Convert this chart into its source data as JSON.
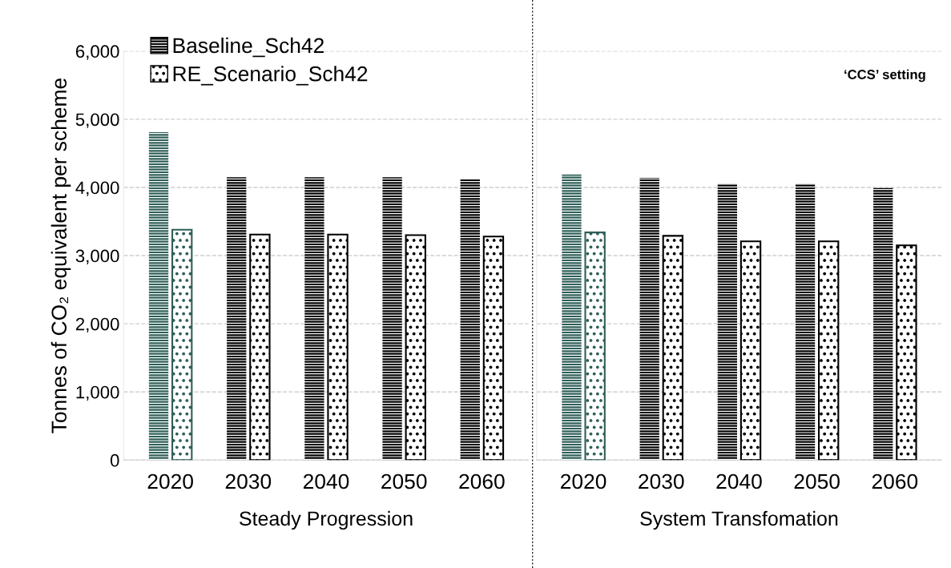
{
  "chart_data": [
    {
      "type": "bar",
      "xlabel": "Steady Progression",
      "ylabel": "Tonnes of CO₂ equivalent per scheme",
      "categories": [
        "2020",
        "2030",
        "2040",
        "2050",
        "2060"
      ],
      "series": [
        {
          "name": "Baseline_Sch42",
          "color": "#000000",
          "colors": [
            "#2e5e57",
            "#000000",
            "#000000",
            "#000000",
            "#000000"
          ],
          "values": [
            4810,
            4150,
            4150,
            4150,
            4130
          ]
        },
        {
          "name": "RE_Scenario_Sch42",
          "color": "#000000",
          "colors": [
            "#2e5e57",
            "#000000",
            "#000000",
            "#000000",
            "#000000"
          ],
          "values": [
            3380,
            3310,
            3310,
            3300,
            3280
          ]
        }
      ],
      "ylim": [
        0,
        6000
      ],
      "yticks": [
        {
          "value": 0,
          "label": "0"
        },
        {
          "value": 1000,
          "label": "1,000"
        },
        {
          "value": 2000,
          "label": "2,000"
        },
        {
          "value": 3000,
          "label": "3,000"
        },
        {
          "value": 4000,
          "label": "4,000"
        },
        {
          "value": 5000,
          "label": "5,000"
        },
        {
          "value": 6000,
          "label": "6,000"
        }
      ],
      "grid": "y",
      "legend": "top left"
    },
    {
      "type": "bar",
      "xlabel": "System Transfomation",
      "annotations": [
        "‘CCS’ setting"
      ],
      "categories": [
        "2020",
        "2030",
        "2040",
        "2050",
        "2060"
      ],
      "series": [
        {
          "colors": [
            "#2e5e57",
            "#000000",
            "#000000",
            "#000000",
            "#000000"
          ],
          "values": [
            4190,
            4140,
            4050,
            4050,
            3990
          ]
        },
        {
          "colors": [
            "#2e5e57",
            "#000000",
            "#000000",
            "#000000",
            "#000000"
          ],
          "values": [
            3340,
            3290,
            3210,
            3210,
            3150
          ]
        }
      ],
      "ylim": [
        0,
        6000
      ],
      "yticks": [
        0,
        1000,
        2000,
        3000,
        4000,
        5000,
        6000
      ],
      "grid": "y",
      "tick_labels": "x"
    }
  ]
}
